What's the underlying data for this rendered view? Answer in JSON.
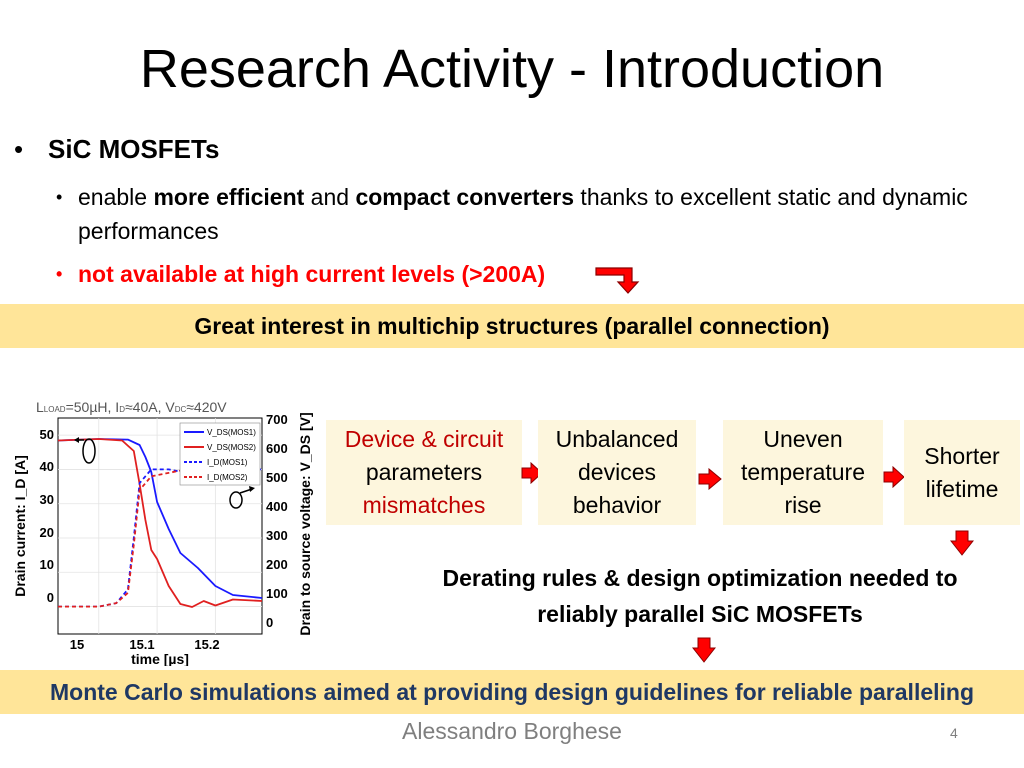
{
  "slide": {
    "title": "Research Activity - Introduction",
    "bullet_main": "SiC MOSFETs",
    "sub1": {
      "p1": "enable ",
      "b1": "more efficient",
      "p2": " and ",
      "b2": "compact converters",
      "p3": " thanks to excellent static and dynamic performances"
    },
    "sub2": "not available at high current levels (>200A)",
    "banner_top": "Great interest in multichip structures (parallel connection)",
    "flow": {
      "box1_line1": "Device & circuit",
      "box1_line2": "parameters",
      "box1_line3": "mismatches",
      "box2_line1": "Unbalanced",
      "box2_line2": "devices",
      "box2_line3": "behavior",
      "box3_line1": "Uneven",
      "box3_line2": "temperature",
      "box3_line3": "rise",
      "box4_line1": "Shorter",
      "box4_line2": "lifetime"
    },
    "conclusion_line1": "Derating rules & design optimization needed to",
    "conclusion_line2": "reliably parallel SiC MOSFETs",
    "banner_bottom": "Monte Carlo simulations aimed at providing design guidelines for reliable paralleling",
    "author": "Alessandro Borghese",
    "page_number": "4",
    "colors": {
      "banner": "#ffe599",
      "flow_box": "#fdf6dd",
      "highlight_red": "#c00000",
      "arrow_red": "#ff0000",
      "bottom_banner_text": "#1f3864"
    }
  },
  "chart_data": {
    "type": "line",
    "annotation": {
      "p1": "L",
      "s1": "LOAD",
      "p2": "=50µH, I",
      "s2": "D",
      "p3": "≈40A, V",
      "s3": "DC",
      "p4": "≈420V"
    },
    "xlabel": "time [µs]",
    "ylabel_left": "Drain current: I_D [A]",
    "ylabel_right": "Drain to source voltage: V_DS [V]",
    "xlim": [
      14.93,
      15.28
    ],
    "ylim_left": [
      -8,
      55
    ],
    "ylim_right": [
      -20,
      700
    ],
    "x_ticks": [
      "15",
      "15.1",
      "15.2"
    ],
    "y_left_ticks": [
      "50",
      "40",
      "30",
      "20",
      "10",
      "0"
    ],
    "y_right_ticks": [
      "700",
      "600",
      "500",
      "400",
      "300",
      "200",
      "100",
      "0"
    ],
    "legend": [
      "V_DS(MOS1)",
      "V_DS(MOS2)",
      "I_D(MOS1)",
      "I_D(MOS2)"
    ],
    "series": [
      {
        "name": "V_DS(MOS1)",
        "axis": "right",
        "color": "#1a1aff",
        "dash": false,
        "x": [
          14.93,
          15.0,
          15.05,
          15.07,
          15.08,
          15.09,
          15.1,
          15.12,
          15.14,
          15.17,
          15.2,
          15.23,
          15.28
        ],
        "y": [
          625,
          630,
          628,
          610,
          570,
          520,
          420,
          330,
          250,
          200,
          140,
          110,
          100
        ]
      },
      {
        "name": "V_DS(MOS2)",
        "axis": "right",
        "color": "#e02020",
        "dash": false,
        "x": [
          14.93,
          15.0,
          15.04,
          15.06,
          15.07,
          15.08,
          15.09,
          15.1,
          15.12,
          15.14,
          15.16,
          15.18,
          15.2,
          15.23,
          15.28
        ],
        "y": [
          625,
          630,
          625,
          590,
          480,
          360,
          260,
          230,
          140,
          80,
          70,
          90,
          75,
          95,
          90
        ]
      },
      {
        "name": "I_D(MOS1)",
        "axis": "left",
        "color": "#1a1aff",
        "dash": true,
        "x": [
          14.93,
          15.0,
          15.03,
          15.05,
          15.06,
          15.07,
          15.09,
          15.12,
          15.15,
          15.2,
          15.28
        ],
        "y": [
          0,
          0,
          1,
          5,
          20,
          36,
          40,
          40,
          39,
          40,
          40
        ]
      },
      {
        "name": "I_D(MOS2)",
        "axis": "left",
        "color": "#e02020",
        "dash": true,
        "x": [
          14.93,
          15.0,
          15.03,
          15.05,
          15.06,
          15.07,
          15.09,
          15.12,
          15.15,
          15.2,
          15.28
        ],
        "y": [
          0,
          0,
          1,
          4,
          18,
          34,
          38,
          39,
          40,
          39,
          39
        ]
      }
    ]
  }
}
